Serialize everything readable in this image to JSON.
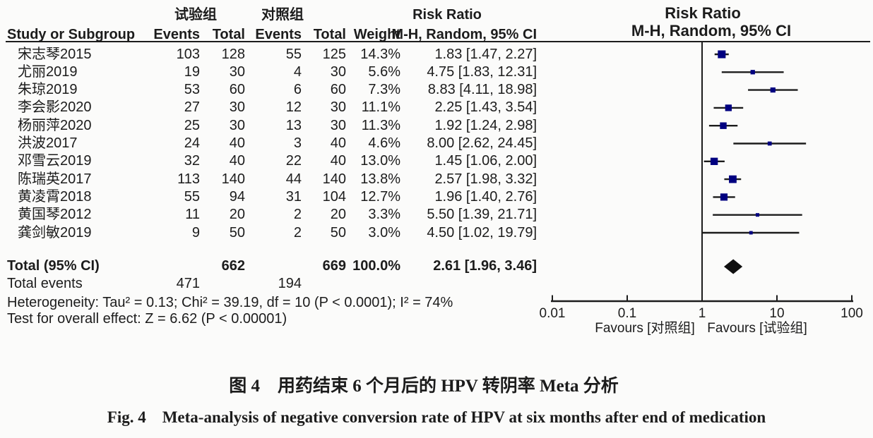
{
  "header": {
    "group1": "试验组",
    "group2": "对照组",
    "risk_ratio_left": "Risk Ratio",
    "risk_ratio_right": "Risk Ratio",
    "method_left": "M-H, Random, 95% CI",
    "method_right": "M-H, Random, 95% CI",
    "col_study": "Study or Subgroup",
    "col_events1": "Events",
    "col_total1": "Total",
    "col_events2": "Events",
    "col_total2": "Total",
    "col_weight": "Weight"
  },
  "chart_data": {
    "type": "forest_plot",
    "effect_measure": "Risk Ratio, M-H, Random, 95% CI",
    "x_scale": "log10",
    "x_ticks": [
      0.01,
      0.1,
      1,
      10,
      100
    ],
    "null_line": 1,
    "studies": [
      {
        "name": "宋志琴2015",
        "events1": "103",
        "total1": "128",
        "events2": "55",
        "total2": "125",
        "weight": 14.3,
        "weight_label": "14.3%",
        "rr": 1.83,
        "lo": 1.47,
        "hi": 2.27,
        "ci_label": "1.83 [1.47, 2.27]"
      },
      {
        "name": "尤丽2019",
        "events1": "19",
        "total1": "30",
        "events2": "4",
        "total2": "30",
        "weight": 5.6,
        "weight_label": "5.6%",
        "rr": 4.75,
        "lo": 1.83,
        "hi": 12.31,
        "ci_label": "4.75 [1.83, 12.31]"
      },
      {
        "name": "朱琼2019",
        "events1": "53",
        "total1": "60",
        "events2": "6",
        "total2": "60",
        "weight": 7.3,
        "weight_label": "7.3%",
        "rr": 8.83,
        "lo": 4.11,
        "hi": 18.98,
        "ci_label": "8.83 [4.11, 18.98]"
      },
      {
        "name": "李会影2020",
        "events1": "27",
        "total1": "30",
        "events2": "12",
        "total2": "30",
        "weight": 11.1,
        "weight_label": "11.1%",
        "rr": 2.25,
        "lo": 1.43,
        "hi": 3.54,
        "ci_label": "2.25 [1.43, 3.54]"
      },
      {
        "name": "杨丽萍2020",
        "events1": "25",
        "total1": "30",
        "events2": "13",
        "total2": "30",
        "weight": 11.3,
        "weight_label": "11.3%",
        "rr": 1.92,
        "lo": 1.24,
        "hi": 2.98,
        "ci_label": "1.92 [1.24, 2.98]"
      },
      {
        "name": "洪波2017",
        "events1": "24",
        "total1": "40",
        "events2": "3",
        "total2": "40",
        "weight": 4.6,
        "weight_label": "4.6%",
        "rr": 8.0,
        "lo": 2.62,
        "hi": 24.45,
        "ci_label": "8.00 [2.62, 24.45]"
      },
      {
        "name": "邓雪云2019",
        "events1": "32",
        "total1": "40",
        "events2": "22",
        "total2": "40",
        "weight": 13.0,
        "weight_label": "13.0%",
        "rr": 1.45,
        "lo": 1.06,
        "hi": 2.0,
        "ci_label": "1.45 [1.06, 2.00]"
      },
      {
        "name": "陈瑞英2017",
        "events1": "113",
        "total1": "140",
        "events2": "44",
        "total2": "140",
        "weight": 13.8,
        "weight_label": "13.8%",
        "rr": 2.57,
        "lo": 1.98,
        "hi": 3.32,
        "ci_label": "2.57 [1.98, 3.32]"
      },
      {
        "name": "黄凌霄2018",
        "events1": "55",
        "total1": "94",
        "events2": "31",
        "total2": "104",
        "weight": 12.7,
        "weight_label": "12.7%",
        "rr": 1.96,
        "lo": 1.4,
        "hi": 2.76,
        "ci_label": "1.96 [1.40, 2.76]"
      },
      {
        "name": "黄国琴2012",
        "events1": "11",
        "total1": "20",
        "events2": "2",
        "total2": "20",
        "weight": 3.3,
        "weight_label": "3.3%",
        "rr": 5.5,
        "lo": 1.39,
        "hi": 21.71,
        "ci_label": "5.50 [1.39, 21.71]"
      },
      {
        "name": "龚剑敏2019",
        "events1": "9",
        "total1": "50",
        "events2": "2",
        "total2": "50",
        "weight": 3.0,
        "weight_label": "3.0%",
        "rr": 4.5,
        "lo": 1.02,
        "hi": 19.79,
        "ci_label": "4.50 [1.02, 19.79]"
      }
    ],
    "total": {
      "label": "Total (95% CI)",
      "total1": "662",
      "total2": "669",
      "weight_label": "100.0%",
      "rr": 2.61,
      "lo": 1.96,
      "hi": 3.46,
      "ci_label": "2.61 [1.96, 3.46]"
    },
    "total_events": {
      "label": "Total events",
      "events1": "471",
      "events2": "194"
    },
    "heterogeneity": "Heterogeneity: Tau² = 0.13; Chi² = 39.19, df = 10 (P < 0.0001); I² = 74%",
    "overall_effect": "Test for overall effect: Z = 6.62 (P < 0.00001)",
    "favours_left": "Favours [对照组]",
    "favours_right": "Favours [试验组]",
    "colors": {
      "marker": "#000080",
      "line": "#1c1c1c",
      "diamond": "#101010",
      "text": "#1c1c1c"
    }
  },
  "captions": {
    "zh": "图 4　用药结束 6 个月后的 HPV 转阴率 Meta 分析",
    "en": "Fig. 4　Meta-analysis of negative conversion rate of HPV at six months after end of medication"
  }
}
